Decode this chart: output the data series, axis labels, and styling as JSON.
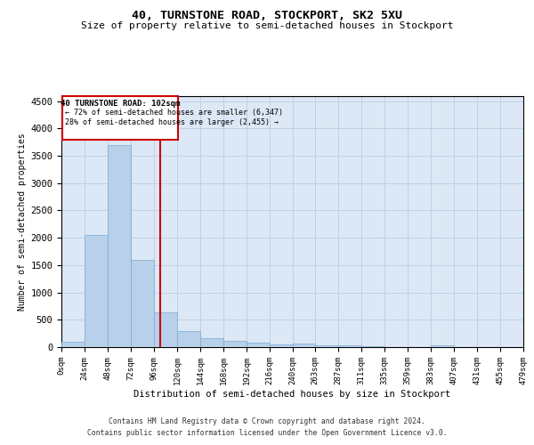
{
  "title": "40, TURNSTONE ROAD, STOCKPORT, SK2 5XU",
  "subtitle": "Size of property relative to semi-detached houses in Stockport",
  "xlabel": "Distribution of semi-detached houses by size in Stockport",
  "ylabel": "Number of semi-detached properties",
  "annotation_title": "40 TURNSTONE ROAD: 102sqm",
  "annotation_line1": "← 72% of semi-detached houses are smaller (6,347)",
  "annotation_line2": "28% of semi-detached houses are larger (2,455) →",
  "property_size": 102,
  "bar_edges": [
    0,
    24,
    48,
    72,
    96,
    120,
    144,
    168,
    192,
    216,
    240,
    263,
    287,
    311,
    335,
    359,
    383,
    407,
    431,
    455,
    479
  ],
  "bar_values": [
    100,
    2050,
    3700,
    1600,
    630,
    290,
    155,
    110,
    80,
    55,
    60,
    30,
    25,
    10,
    5,
    0,
    40,
    0,
    0,
    0
  ],
  "bar_color": "#b8d0ea",
  "bar_edge_color": "#7aaad0",
  "line_color": "#cc0000",
  "grid_color": "#c0d0e8",
  "bg_color": "#dce8f5",
  "ylim_max": 4600,
  "yticks": [
    0,
    500,
    1000,
    1500,
    2000,
    2500,
    3000,
    3500,
    4000,
    4500
  ],
  "footnote1": "Contains HM Land Registry data © Crown copyright and database right 2024.",
  "footnote2": "Contains public sector information licensed under the Open Government Licence v3.0."
}
